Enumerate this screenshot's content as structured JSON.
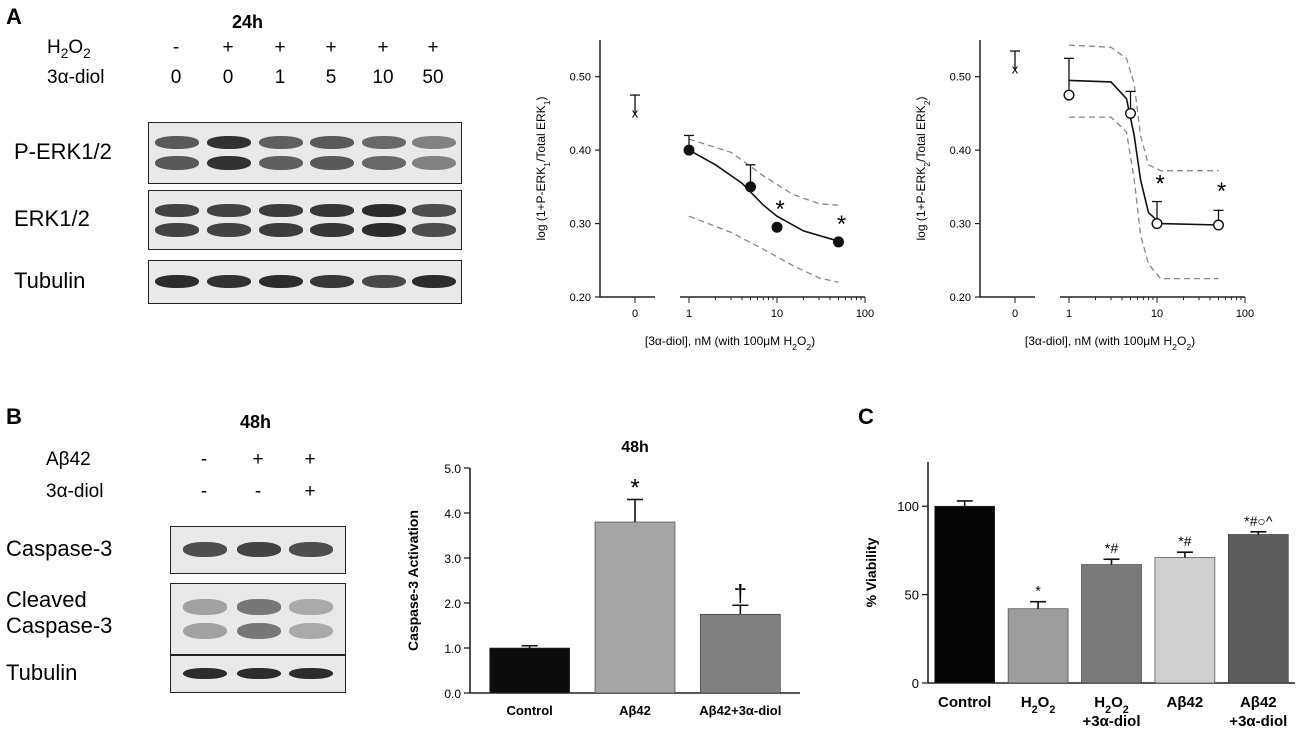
{
  "panel_a": {
    "letter": "A",
    "blot": {
      "title": "24h",
      "condition_rows": [
        {
          "label": "H2O2",
          "values": [
            "-",
            "+",
            "+",
            "+",
            "+",
            "+"
          ]
        },
        {
          "label": "3α-diol",
          "values": [
            "0",
            "0",
            "1",
            "5",
            "10",
            "50"
          ]
        }
      ],
      "blot_rows": [
        {
          "label": "P-ERK1/2",
          "bands": 2,
          "intensity": [
            0.75,
            0.92,
            0.72,
            0.75,
            0.68,
            0.55
          ]
        },
        {
          "label": "ERK1/2",
          "bands": 2,
          "intensity": [
            0.85,
            0.85,
            0.88,
            0.9,
            0.95,
            0.8
          ]
        },
        {
          "label": "Tubulin",
          "bands": 1,
          "intensity": [
            0.95,
            0.92,
            0.95,
            0.9,
            0.82,
            0.95
          ]
        }
      ]
    }
  },
  "panel_b": {
    "letter": "B",
    "blot": {
      "title": "48h",
      "condition_rows": [
        {
          "label": "Aβ42",
          "values": [
            "-",
            "+",
            "+"
          ]
        },
        {
          "label": "3α-diol",
          "values": [
            "-",
            "-",
            "+"
          ]
        }
      ],
      "blot_rows": [
        {
          "label": "Caspase-3",
          "bands": 1,
          "intensity": [
            0.8,
            0.85,
            0.8
          ]
        },
        {
          "label": "Cleaved Caspase-3",
          "label_lines": [
            "Cleaved",
            "Caspase-3"
          ],
          "bands": 2,
          "intensity": [
            0.35,
            0.6,
            0.3
          ]
        },
        {
          "label": "Tubulin",
          "bands": 1,
          "intensity": [
            0.95,
            0.95,
            0.95
          ]
        }
      ]
    }
  },
  "panel_c": {
    "letter": "C"
  },
  "chart_data": [
    {
      "type": "scatter",
      "ylabel": "log (1+P-ERK1/Total ERK1)",
      "xlabel": "[3α-diol], nM (with 100μM H2O2)",
      "xscale": "log",
      "x_tick_labels": [
        "0",
        "1",
        "10",
        "100"
      ],
      "y_tick_labels": [
        "0.20",
        "0.30",
        "0.40",
        "0.50"
      ],
      "ylim": [
        0.2,
        0.55
      ],
      "control_point": {
        "x_label": "0",
        "y": 0.45,
        "error": 0.025,
        "marker": "x"
      },
      "points": [
        {
          "x": 1,
          "y": 0.4,
          "error": 0.02
        },
        {
          "x": 5,
          "y": 0.35,
          "error": 0.03
        },
        {
          "x": 10,
          "y": 0.295,
          "error": 0.0
        },
        {
          "x": 50,
          "y": 0.275,
          "error": 0.0
        }
      ],
      "fit_curve": [
        [
          1,
          0.4
        ],
        [
          2,
          0.38
        ],
        [
          4,
          0.355
        ],
        [
          7,
          0.325
        ],
        [
          10,
          0.31
        ],
        [
          20,
          0.29
        ],
        [
          50,
          0.276
        ]
      ],
      "ci_upper": [
        [
          1,
          0.415
        ],
        [
          3,
          0.397
        ],
        [
          7,
          0.365
        ],
        [
          15,
          0.34
        ],
        [
          30,
          0.327
        ],
        [
          50,
          0.325
        ]
      ],
      "ci_lower": [
        [
          1,
          0.31
        ],
        [
          3,
          0.288
        ],
        [
          7,
          0.265
        ],
        [
          15,
          0.243
        ],
        [
          30,
          0.226
        ],
        [
          50,
          0.22
        ]
      ],
      "annotations": [
        {
          "x": 10,
          "y": 0.295,
          "text": "*"
        },
        {
          "x": 50,
          "y": 0.275,
          "text": "*"
        }
      ]
    },
    {
      "type": "scatter",
      "ylabel": "log (1+P-ERK2/Total ERK2)",
      "xlabel": "[3α-diol], nM (with 100μM H2O2)",
      "xscale": "log",
      "x_tick_labels": [
        "0",
        "1",
        "10",
        "100"
      ],
      "y_tick_labels": [
        "0.20",
        "0.30",
        "0.40",
        "0.50"
      ],
      "ylim": [
        0.2,
        0.55
      ],
      "control_point": {
        "x_label": "0",
        "y": 0.51,
        "error": 0.025,
        "marker": "x"
      },
      "points": [
        {
          "x": 1,
          "y": 0.475,
          "error": 0.05
        },
        {
          "x": 5,
          "y": 0.45,
          "error": 0.03
        },
        {
          "x": 10,
          "y": 0.3,
          "error": 0.03
        },
        {
          "x": 50,
          "y": 0.298,
          "error": 0.02
        }
      ],
      "fit_curve": [
        [
          1,
          0.495
        ],
        [
          3,
          0.493
        ],
        [
          4.5,
          0.47
        ],
        [
          5.5,
          0.42
        ],
        [
          6.5,
          0.36
        ],
        [
          8,
          0.315
        ],
        [
          11,
          0.3
        ],
        [
          50,
          0.298
        ]
      ],
      "ci_upper": [
        [
          1,
          0.543
        ],
        [
          3,
          0.54
        ],
        [
          4.5,
          0.525
        ],
        [
          5.5,
          0.49
        ],
        [
          6.5,
          0.42
        ],
        [
          8,
          0.38
        ],
        [
          11,
          0.372
        ],
        [
          50,
          0.372
        ]
      ],
      "ci_lower": [
        [
          1,
          0.445
        ],
        [
          3,
          0.445
        ],
        [
          4.5,
          0.425
        ],
        [
          5.5,
          0.36
        ],
        [
          6.5,
          0.285
        ],
        [
          8,
          0.245
        ],
        [
          11,
          0.225
        ],
        [
          50,
          0.225
        ]
      ],
      "annotations": [
        {
          "x": 10,
          "y": 0.33,
          "text": "*"
        },
        {
          "x": 50,
          "y": 0.32,
          "text": "*"
        }
      ]
    },
    {
      "type": "bar",
      "title": "48h",
      "ylabel": "Caspase-3 Activation",
      "categories": [
        "Control",
        "Aβ42",
        "Aβ42+3α-diol"
      ],
      "values": [
        1.0,
        3.8,
        1.75
      ],
      "errors": [
        0.05,
        0.5,
        0.2
      ],
      "colors": [
        "#0d0d0d",
        "#a5a5a5",
        "#808080"
      ],
      "ylim": [
        0,
        5
      ],
      "y_tick_labels": [
        "0.0",
        "1.0",
        "2.0",
        "3.0",
        "4.0",
        "5.0"
      ],
      "annotations": [
        "",
        "*",
        "†"
      ]
    },
    {
      "type": "bar",
      "ylabel": "% Viability",
      "categories": [
        {
          "lines": [
            "Control"
          ]
        },
        {
          "lines": [
            "H2O2"
          ]
        },
        {
          "lines": [
            "H2O2",
            "+3α-diol"
          ]
        },
        {
          "lines": [
            "Aβ42"
          ]
        },
        {
          "lines": [
            "Aβ42",
            "+3α-diol"
          ]
        }
      ],
      "values": [
        100,
        42,
        67,
        71,
        84
      ],
      "errors": [
        3,
        4,
        3,
        3,
        1.5
      ],
      "colors": [
        "#050505",
        "#9d9d9d",
        "#7a7a7a",
        "#cfcfcf",
        "#5c5c5c"
      ],
      "ylim": [
        0,
        125
      ],
      "y_tick_labels": [
        "0",
        "50",
        "100"
      ],
      "annotations": [
        "",
        "*",
        "*#",
        "*#",
        "*#○^"
      ]
    }
  ]
}
